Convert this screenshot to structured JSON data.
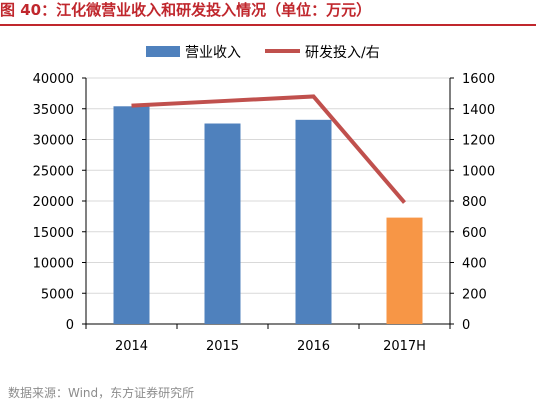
{
  "figure": {
    "label": "图 40：",
    "title": "江化微营业收入和研发投入情况（单位：万元）",
    "source": "数据来源：Wind，东方证券研究所"
  },
  "chart_data": {
    "type": "bar",
    "categories": [
      "2014",
      "2015",
      "2016",
      "2017H"
    ],
    "series": [
      {
        "name": "营业收入",
        "type": "bar",
        "axis": "left",
        "values": [
          35400,
          32600,
          33200,
          17300
        ],
        "colors": [
          "#4f81bd",
          "#4f81bd",
          "#4f81bd",
          "#f79646"
        ]
      },
      {
        "name": "研发投入/右",
        "type": "line",
        "axis": "right",
        "values": [
          1420,
          1450,
          1480,
          790
        ],
        "color": "#c0504d"
      }
    ],
    "ylim_left": [
      0,
      40000
    ],
    "yticks_left": [
      0,
      5000,
      10000,
      15000,
      20000,
      25000,
      30000,
      35000,
      40000
    ],
    "ylim_right": [
      0,
      1600
    ],
    "yticks_right": [
      0,
      200,
      400,
      600,
      800,
      1000,
      1200,
      1400,
      1600
    ],
    "grid": true,
    "legend_position": "top"
  }
}
